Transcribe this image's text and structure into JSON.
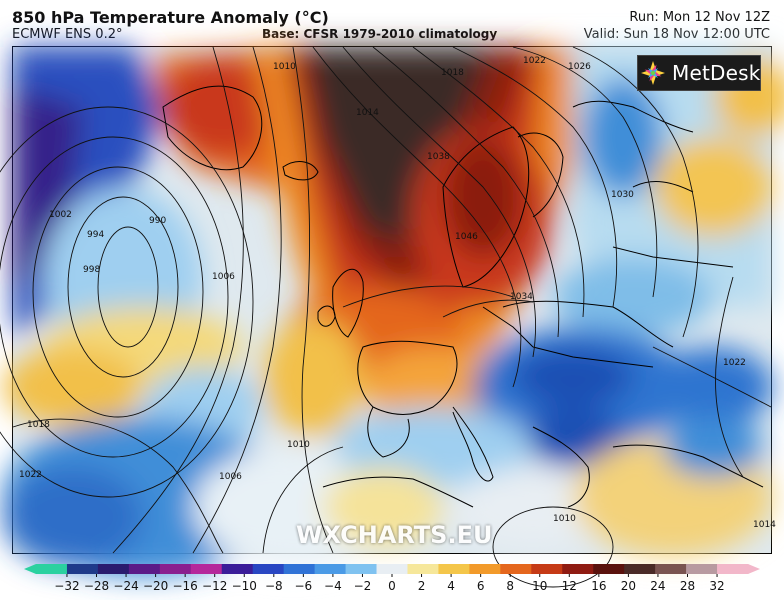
{
  "header": {
    "title": "850 hPa Temperature Anomaly (°C)",
    "model": "ECMWF ENS 0.2°",
    "base": "Base: CFSR 1979-2010 climatology",
    "run": "Run: Mon 12 Nov 12Z",
    "valid": "Valid: Sun 18 Nov 12:00 UTC"
  },
  "logo": {
    "text": "MetDesk",
    "icon": "metdesk-star-icon"
  },
  "watermark": "WXCHARTS.EU",
  "isobar_labels": [
    "1010",
    "1018",
    "1022",
    "1026",
    "1014",
    "1038",
    "1030",
    "1034",
    "1046",
    "990",
    "994",
    "998",
    "1006",
    "1002",
    "1010",
    "1018",
    "1022",
    "1006",
    "1022",
    "1010",
    "1014"
  ],
  "colorbar": {
    "ticks": [
      "−32",
      "−28",
      "−24",
      "−20",
      "−16",
      "−12",
      "−10",
      "−8",
      "−6",
      "−4",
      "−2",
      "0",
      "2",
      "4",
      "6",
      "8",
      "10",
      "12",
      "16",
      "20",
      "24",
      "28",
      "32"
    ],
    "colors": [
      "#2bd1a0",
      "#1f3a8a",
      "#2a1b6e",
      "#5b1a88",
      "#8a1f8f",
      "#b5289b",
      "#3b1d99",
      "#2846c2",
      "#2f72d6",
      "#4a9ae6",
      "#7fc2f0",
      "#e8eef3",
      "#f6e79a",
      "#f4c64a",
      "#f29a2a",
      "#e4661d",
      "#c53a16",
      "#8f1b12",
      "#5a120d",
      "#4a2a26",
      "#7a5450",
      "#b89aa0",
      "#f2b7c9"
    ]
  },
  "colors": {
    "warm_core": "#3b2a27",
    "deep_red": "#8b1a10",
    "red": "#c9391a",
    "orange": "#ef8a24",
    "yellow": "#f3c552",
    "light_yellow": "#f5e39a",
    "neutral": "#e9edf0",
    "light_blue": "#9fd0ef",
    "blue": "#3f8ed8",
    "deep_blue": "#1d4fb4",
    "violet": "#3a1f8a"
  }
}
